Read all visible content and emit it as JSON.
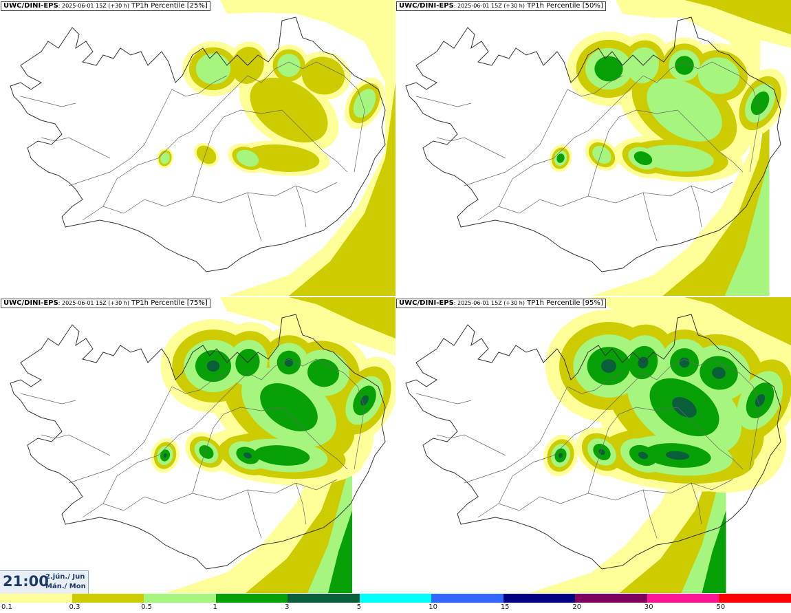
{
  "panels": [
    {
      "model": "UWC/DINI-EPS",
      "run": ": 2025-06-01 15Z (+30 h)",
      "field": "TP1h Percentile [25%]",
      "level": 1
    },
    {
      "model": "UWC/DINI-EPS",
      "run": ": 2025-06-01 15Z (+30 h)",
      "field": "TP1h Percentile [50%]",
      "level": 2
    },
    {
      "model": "UWC/DINI-EPS",
      "run": ": 2025-06-01 15Z (+30 h)",
      "field": "TP1h Percentile [75%]",
      "level": 3
    },
    {
      "model": "UWC/DINI-EPS",
      "run": ": 2025-06-01 15Z (+30 h)",
      "field": "TP1h Percentile [95%]",
      "level": 4
    }
  ],
  "valid_time": {
    "time": "21:00",
    "date": "2.jún./ Jun",
    "day": "Mán./ Mon"
  },
  "legend": {
    "ticks": [
      "0.1",
      "0.3",
      "0.5",
      "1",
      "3",
      "5",
      "10",
      "15",
      "20",
      "30",
      "50"
    ],
    "colors": [
      "#ffff99",
      "#cccc00",
      "#a6f57e",
      "#07a007",
      "#0b5e3a",
      "#00ffff",
      "#3366ff",
      "#000080",
      "#800060",
      "#ff1493",
      "#ff0000"
    ]
  }
}
